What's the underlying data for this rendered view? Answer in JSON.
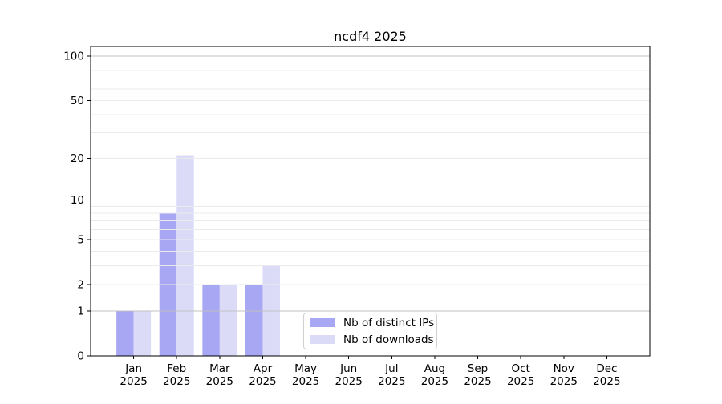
{
  "chart_data": {
    "type": "bar",
    "title": "ncdf4 2025",
    "categories": [
      "Jan 2025",
      "Feb 2025",
      "Mar 2025",
      "Apr 2025",
      "May 2025",
      "Jun 2025",
      "Jul 2025",
      "Aug 2025",
      "Sep 2025",
      "Oct 2025",
      "Nov 2025",
      "Dec 2025"
    ],
    "series": [
      {
        "name": "Nb of distinct IPs",
        "color": "#a7a7f3",
        "values": [
          1,
          8,
          2,
          2,
          0,
          0,
          0,
          0,
          0,
          0,
          0,
          0
        ]
      },
      {
        "name": "Nb of downloads",
        "color": "#dbdbf8",
        "values": [
          1,
          21,
          2,
          3,
          0,
          0,
          0,
          0,
          0,
          0,
          0,
          0
        ]
      }
    ],
    "yscale": "log1p",
    "ylim": [
      0,
      116
    ],
    "ytick_labels": [
      "0",
      "1",
      "2",
      "5",
      "10",
      "20",
      "50",
      "100"
    ],
    "ytick_values": [
      0,
      1,
      2,
      5,
      10,
      20,
      50,
      100
    ],
    "minor_grid_values": [
      2,
      3,
      4,
      5,
      6,
      7,
      8,
      9,
      20,
      30,
      40,
      50,
      60,
      70,
      80,
      90
    ],
    "major_grid_values": [
      1,
      10,
      100
    ],
    "grid": true,
    "legend_position": "lower center",
    "legend_entries": [
      "Nb of distinct IPs",
      "Nb of downloads"
    ]
  },
  "colors": {
    "background": "#ffffff",
    "bar_distinct_ips": "#a7a7f3",
    "bar_downloads": "#dbdbf8",
    "grid_major": "#c2c2c2",
    "grid_minor": "#ebebeb",
    "spine": "#000000",
    "legend_border": "#d0d0d0"
  }
}
